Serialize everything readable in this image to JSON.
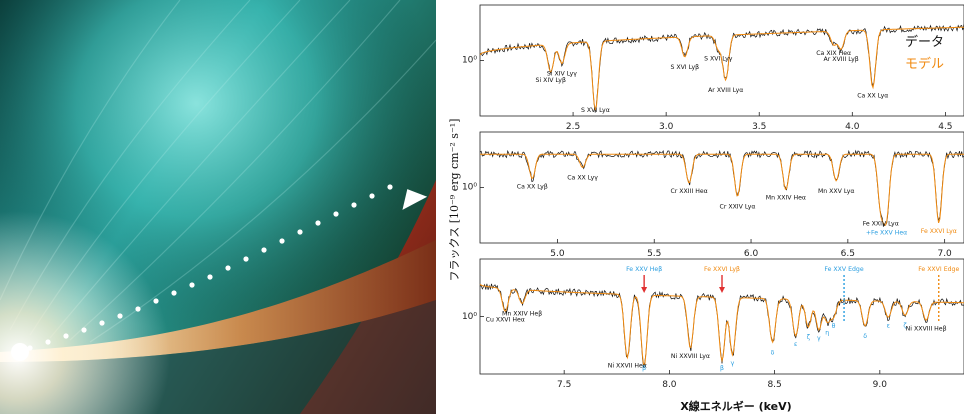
{
  "chart_data": {
    "type": "line",
    "ylabel": "フラックス [10⁻⁹ erg cm⁻² s⁻¹]",
    "xlabel": "X線エネルギー (keV)",
    "legend": {
      "placement": "top-right",
      "data_label": "データ",
      "model_label": "モデル"
    },
    "colors": {
      "data": "#111111",
      "model": "#f08a10",
      "annotation_blue": "#2a9ee0",
      "arrow_red": "#e03030"
    },
    "panels": [
      {
        "xlim": [
          2.0,
          4.6
        ],
        "xticks": [
          "2.5",
          "3.0",
          "3.5",
          "4.0",
          "4.5"
        ],
        "xtick_values": [
          2.5,
          3.0,
          3.5,
          4.0,
          4.5
        ],
        "ytick_label": "10⁰",
        "continuum": [
          0.22,
          0.78
        ],
        "lines": [
          {
            "e": 2.38,
            "d": 0.25,
            "label": "Si XIV Lyβ"
          },
          {
            "e": 2.44,
            "d": 0.18,
            "label": "Si XIV Lyγ"
          },
          {
            "e": 2.62,
            "d": 0.62,
            "label": "S XVI Lyα"
          },
          {
            "e": 3.1,
            "d": 0.18,
            "label": "S XVI Lyβ"
          },
          {
            "e": 3.28,
            "d": 0.12,
            "label": "S XVI Lyγ"
          },
          {
            "e": 3.32,
            "d": 0.4,
            "label": "Ar XVIII Lyα"
          },
          {
            "e": 3.9,
            "d": 0.12,
            "label": "Ca XIX Heα"
          },
          {
            "e": 3.94,
            "d": 0.16,
            "label": "Ar XVIII Lyβ"
          },
          {
            "e": 4.11,
            "d": 0.52,
            "label": "Ca XX Lyα"
          }
        ]
      },
      {
        "xlim": [
          4.6,
          7.1
        ],
        "xticks": [
          "5.0",
          "5.5",
          "6.0",
          "6.5",
          "7.0"
        ],
        "xtick_values": [
          5.0,
          5.5,
          6.0,
          6.5,
          7.0
        ],
        "ytick_label": "10⁰",
        "continuum": [
          0.8,
          0.8
        ],
        "lines": [
          {
            "e": 4.87,
            "d": 0.22,
            "label": "Ca XX Lyβ"
          },
          {
            "e": 5.13,
            "d": 0.12,
            "label": "Ca XX Lyγ"
          },
          {
            "e": 5.68,
            "d": 0.26,
            "label": "Cr XXIII Heα"
          },
          {
            "e": 5.93,
            "d": 0.38,
            "label": "Cr XXIV Lyα"
          },
          {
            "e": 6.18,
            "d": 0.32,
            "label": "Mn XXIV Heα"
          },
          {
            "e": 6.44,
            "d": 0.24,
            "label": "Mn XXV Lyα"
          },
          {
            "e": 6.67,
            "d": 0.48,
            "label": "Fe XXIV Lyα"
          },
          {
            "e": 6.7,
            "d": 0.55,
            "label": "+Fe XXV Heα"
          },
          {
            "e": 6.97,
            "d": 0.62,
            "label": "Fe XXVI Lyα"
          }
        ]
      },
      {
        "xlim": [
          7.1,
          9.4
        ],
        "xticks": [
          "7.5",
          "8.0",
          "8.5",
          "9.0"
        ],
        "xtick_values": [
          7.5,
          8.0,
          8.5,
          9.0
        ],
        "ytick_label": "10⁰",
        "continuum": [
          0.78,
          0.62
        ],
        "lines": [
          {
            "e": 7.22,
            "d": 0.2,
            "label": "Cu XXVI Heα"
          },
          {
            "e": 7.3,
            "d": 0.12,
            "label": "Mn XXIV Heβ"
          },
          {
            "e": 7.8,
            "d": 0.55,
            "label": "Ni XXVII Heα"
          },
          {
            "e": 7.88,
            "d": 0.62,
            "label": "β"
          },
          {
            "e": 8.1,
            "d": 0.45,
            "label": "Ni XXVIII Lyα"
          },
          {
            "e": 8.25,
            "d": 0.55,
            "label": "β"
          },
          {
            "e": 8.3,
            "d": 0.5,
            "label": "γ"
          },
          {
            "e": 8.49,
            "d": 0.38,
            "label": "δ"
          },
          {
            "e": 8.6,
            "d": 0.32,
            "label": "ε"
          },
          {
            "e": 8.66,
            "d": 0.24,
            "label": "ζ"
          },
          {
            "e": 8.71,
            "d": 0.26,
            "label": "γ"
          },
          {
            "e": 8.75,
            "d": 0.18,
            "label": "η"
          },
          {
            "e": 8.78,
            "d": 0.14,
            "label": "θ"
          },
          {
            "e": 8.93,
            "d": 0.22,
            "label": "δ"
          },
          {
            "e": 9.04,
            "d": 0.14,
            "label": "ε"
          },
          {
            "e": 9.12,
            "d": 0.12,
            "label": "ζ"
          },
          {
            "e": 9.22,
            "d": 0.16,
            "label": "Ni XXVIII Heβ"
          }
        ],
        "annotations": [
          {
            "e": 7.88,
            "label": "Fe XXV Heβ",
            "color": "blue"
          },
          {
            "e": 8.25,
            "label": "Fe XXVI Lyβ",
            "color": "orange"
          },
          {
            "e": 8.83,
            "label": "Fe XXV Edge",
            "color": "blue"
          },
          {
            "e": 9.28,
            "label": "Fe XXVI Edge",
            "color": "orange"
          }
        ]
      }
    ]
  }
}
